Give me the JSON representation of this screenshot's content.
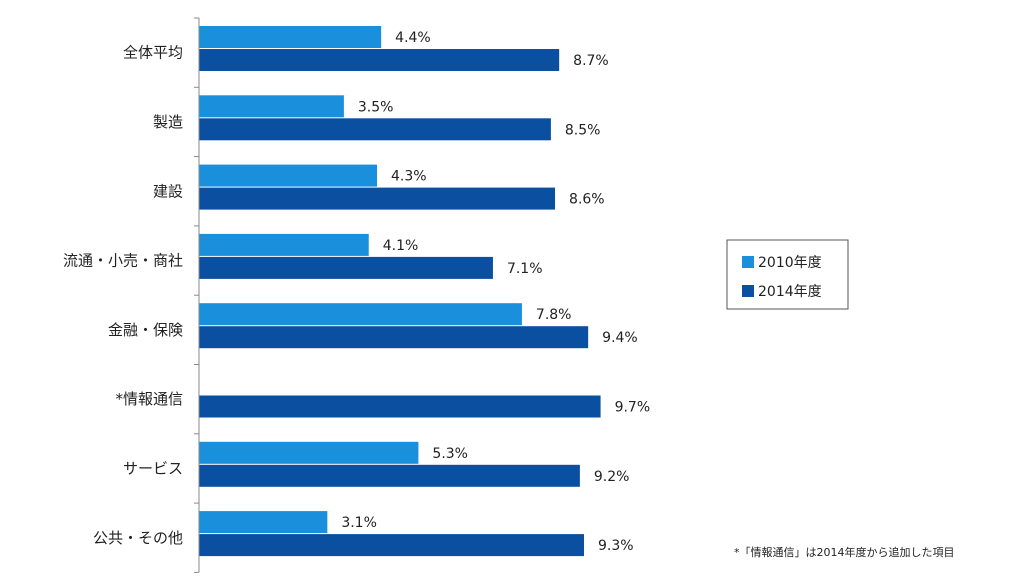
{
  "chart_data": {
    "type": "bar",
    "orientation": "horizontal",
    "categories": [
      "全体平均",
      "製造",
      "建設",
      "流通・小売・商社",
      "金融・保険",
      "*情報通信",
      "サービス",
      "公共・その他"
    ],
    "series": [
      {
        "name": "2010年度",
        "color": "#1a8fdc",
        "values": [
          4.4,
          3.5,
          4.3,
          4.1,
          7.8,
          null,
          5.3,
          3.1
        ],
        "labels": [
          "4.4%",
          "3.5%",
          "4.3%",
          "4.1%",
          "7.8%",
          "",
          "5.3%",
          "3.1%"
        ]
      },
      {
        "name": "2014年度",
        "color": "#0a4fa0",
        "values": [
          8.7,
          8.5,
          8.6,
          7.1,
          9.4,
          9.7,
          9.2,
          9.3
        ],
        "labels": [
          "8.7%",
          "8.5%",
          "8.6%",
          "7.1%",
          "9.4%",
          "9.7%",
          "9.2%",
          "9.3%"
        ]
      }
    ],
    "xlim": [
      0,
      10
    ],
    "grid": false,
    "legend_position": "right",
    "footnote": "*「情報通信」は2014年度から追加した項目"
  }
}
